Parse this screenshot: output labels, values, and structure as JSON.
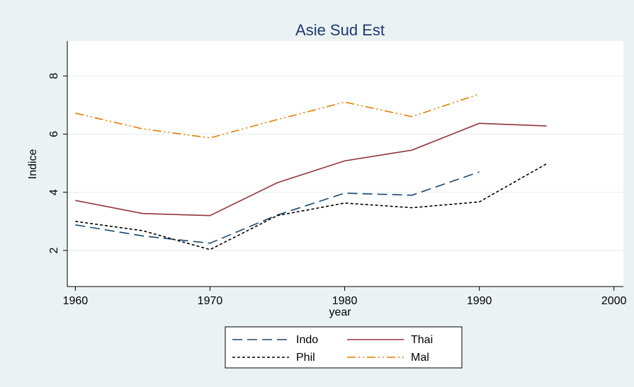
{
  "chart_data": {
    "type": "line",
    "title": "Asie Sud Est",
    "x_label": "year",
    "y_label": "Indice",
    "x": [
      1960,
      1965,
      1970,
      1975,
      1980,
      1985,
      1990,
      1995
    ],
    "series": [
      {
        "name": "Indo",
        "color": "#1a476f",
        "dash": "14 7",
        "values": [
          2.88,
          2.5,
          2.25,
          3.22,
          3.97,
          3.9,
          4.7,
          null
        ]
      },
      {
        "name": "Thai",
        "color": "#90353b",
        "dash": "none",
        "values": [
          3.72,
          3.27,
          3.2,
          4.33,
          5.08,
          5.45,
          6.37,
          6.28
        ]
      },
      {
        "name": "Phil",
        "color": "#000000",
        "dash": "4 3",
        "values": [
          3.0,
          2.68,
          2.03,
          3.2,
          3.63,
          3.47,
          3.67,
          4.98
        ]
      },
      {
        "name": "Mal",
        "color": "#e37e00",
        "dash": "12 4 2 4 2 4",
        "values": [
          6.72,
          6.18,
          5.87,
          6.5,
          7.1,
          6.6,
          7.38,
          null
        ]
      }
    ],
    "xlim": [
      1959.4,
      2000.7
    ],
    "xticks": [
      1960,
      1970,
      1980,
      1990,
      2000
    ],
    "ylim": [
      0.76,
      9.2
    ],
    "yticks": [
      2,
      4,
      6,
      8
    ],
    "grid": true,
    "legend": "bottom"
  }
}
